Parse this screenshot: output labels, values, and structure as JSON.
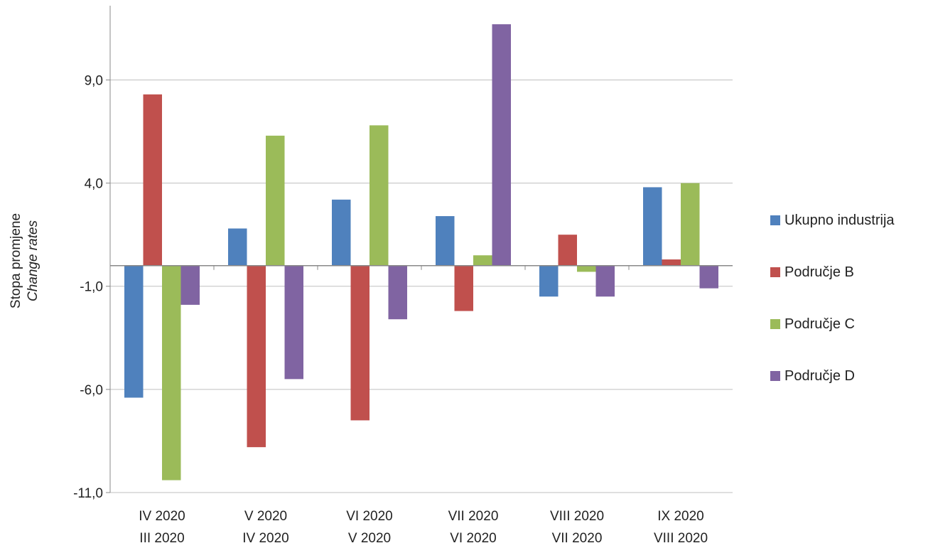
{
  "chart_data": {
    "type": "bar",
    "ylabel": "Stopa promjene",
    "ylabel_en": "Change rates",
    "yticks": [
      "9,0",
      "4,0",
      "-1,0",
      "-6,0",
      "-11,0"
    ],
    "ytick_values": [
      9,
      4,
      -1,
      -6,
      -11
    ],
    "ylim": [
      -11,
      12.6
    ],
    "categories": [
      [
        "IV 2020",
        "III 2020"
      ],
      [
        "V 2020",
        "IV 2020"
      ],
      [
        "VI 2020",
        "V 2020"
      ],
      [
        "VII 2020",
        "VI 2020"
      ],
      [
        "VIII 2020",
        "VII 2020"
      ],
      [
        "IX 2020",
        "VIII 2020"
      ]
    ],
    "series": [
      {
        "name": "Ukupno industrija",
        "color": "#4F81BD",
        "values": [
          -6.4,
          1.8,
          3.2,
          2.4,
          -1.5,
          3.8
        ]
      },
      {
        "name": "Područje B",
        "color": "#C0504D",
        "values": [
          8.3,
          -8.8,
          -7.5,
          -2.2,
          1.5,
          0.3
        ]
      },
      {
        "name": "Područje C",
        "color": "#9BBB59",
        "values": [
          -10.4,
          6.3,
          6.8,
          0.5,
          -0.3,
          4.0
        ]
      },
      {
        "name": "Područje D",
        "color": "#8064A2",
        "values": [
          -1.9,
          -5.5,
          -2.6,
          11.7,
          -1.5,
          -1.1
        ]
      }
    ],
    "grid": true,
    "legend_position": "right"
  }
}
